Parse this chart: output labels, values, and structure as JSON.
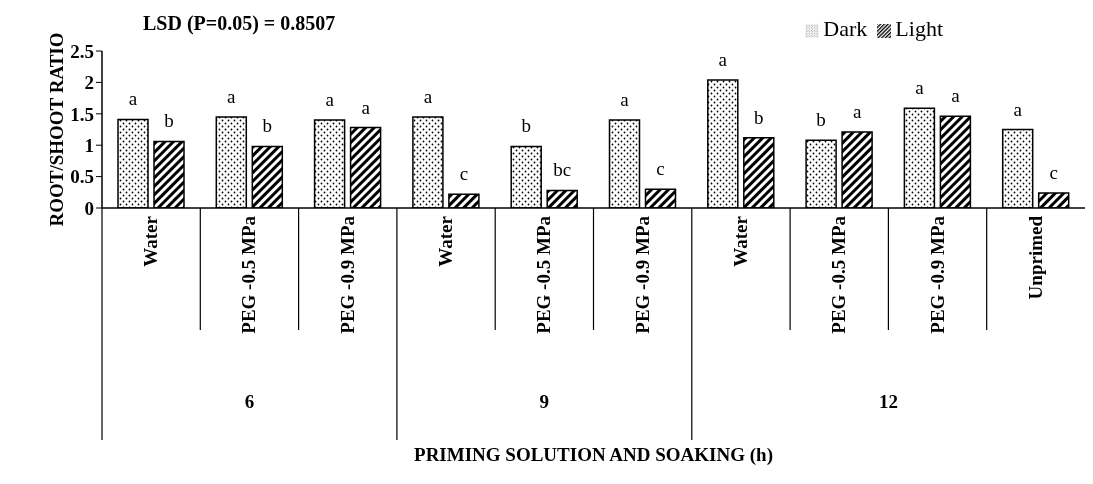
{
  "chart_data": {
    "type": "bar",
    "title": "LSD (P=0.05) = 0.8507",
    "ylabel": "ROOT/SHOOT RATIO",
    "categories": [
      "Water",
      "PEG -0.5 MPa",
      "PEG -0.9 MPa",
      "Water",
      "PEG -0.5 MPa",
      "PEG -0.9 MPa",
      "Water",
      "PEG -0.5 MPa",
      "PEG -0.9 MPa",
      "Unprimed"
    ],
    "series": [
      {
        "name": "Dark",
        "color": "#000000",
        "values": [
          1.41,
          1.45,
          1.4,
          1.45,
          0.98,
          1.4,
          2.04,
          1.08,
          1.59,
          1.25
        ],
        "value_labels": [
          "a",
          "a",
          "a",
          "a",
          "b",
          "a",
          "a",
          "b",
          "a",
          "a"
        ]
      },
      {
        "name": "Light",
        "color": "#000000",
        "values": [
          1.06,
          0.98,
          1.28,
          0.22,
          0.28,
          0.3,
          1.12,
          1.21,
          1.46,
          0.24
        ],
        "value_labels": [
          "b",
          "b",
          "a",
          "c",
          "bc",
          "c",
          "b",
          "a",
          "a",
          "c"
        ]
      }
    ],
    "annotations": [
      "6",
      "9",
      "12",
      "PRIMING SOLUTION AND SOAKING (h)"
    ],
    "ylim": [
      0,
      2.5
    ],
    "yticks": [
      0,
      0.5,
      1,
      1.5,
      2,
      2.5
    ],
    "grid": false,
    "legend": "top right"
  }
}
